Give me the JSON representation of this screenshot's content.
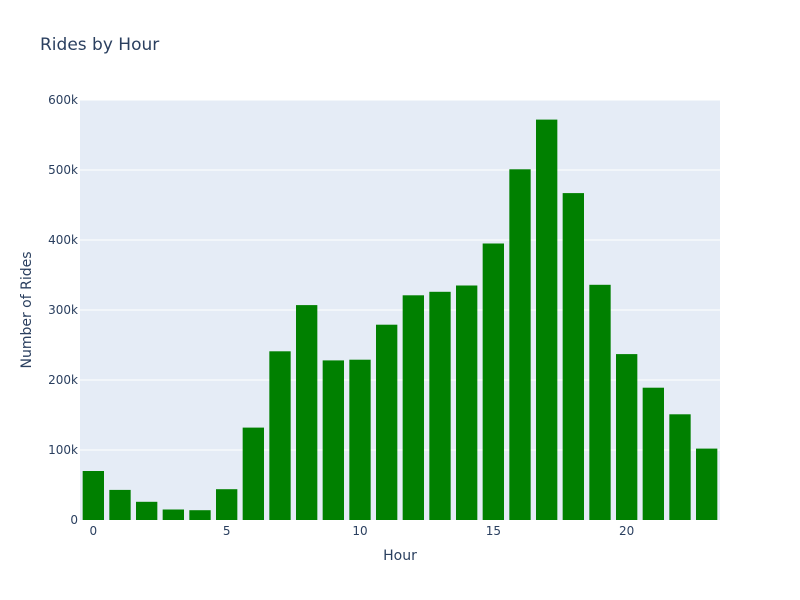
{
  "chart_data": {
    "type": "bar",
    "title": "Rides by Hour",
    "xlabel": "Hour",
    "ylabel": "Number of Rides",
    "bar_color": "#008000",
    "plot_bg": "#e5ecf6",
    "grid_color": "#ffffff",
    "grid": true,
    "x": [
      0,
      1,
      2,
      3,
      4,
      5,
      6,
      7,
      8,
      9,
      10,
      11,
      12,
      13,
      14,
      15,
      16,
      17,
      18,
      19,
      20,
      21,
      22,
      23
    ],
    "values": [
      70000,
      43000,
      26000,
      15000,
      14000,
      44000,
      132000,
      241000,
      307000,
      228000,
      229000,
      279000,
      321000,
      326000,
      335000,
      395000,
      501000,
      572000,
      467000,
      336000,
      237000,
      189000,
      151000,
      102000
    ],
    "xlim": [
      -0.5,
      23.5
    ],
    "ylim": [
      0,
      600000
    ],
    "x_ticks": [
      0,
      5,
      10,
      15,
      20
    ],
    "x_tick_labels": [
      "0",
      "5",
      "10",
      "15",
      "20"
    ],
    "y_ticks": [
      0,
      100000,
      200000,
      300000,
      400000,
      500000,
      600000
    ],
    "y_tick_labels": [
      "0",
      "100k",
      "200k",
      "300k",
      "400k",
      "500k",
      "600k"
    ]
  }
}
